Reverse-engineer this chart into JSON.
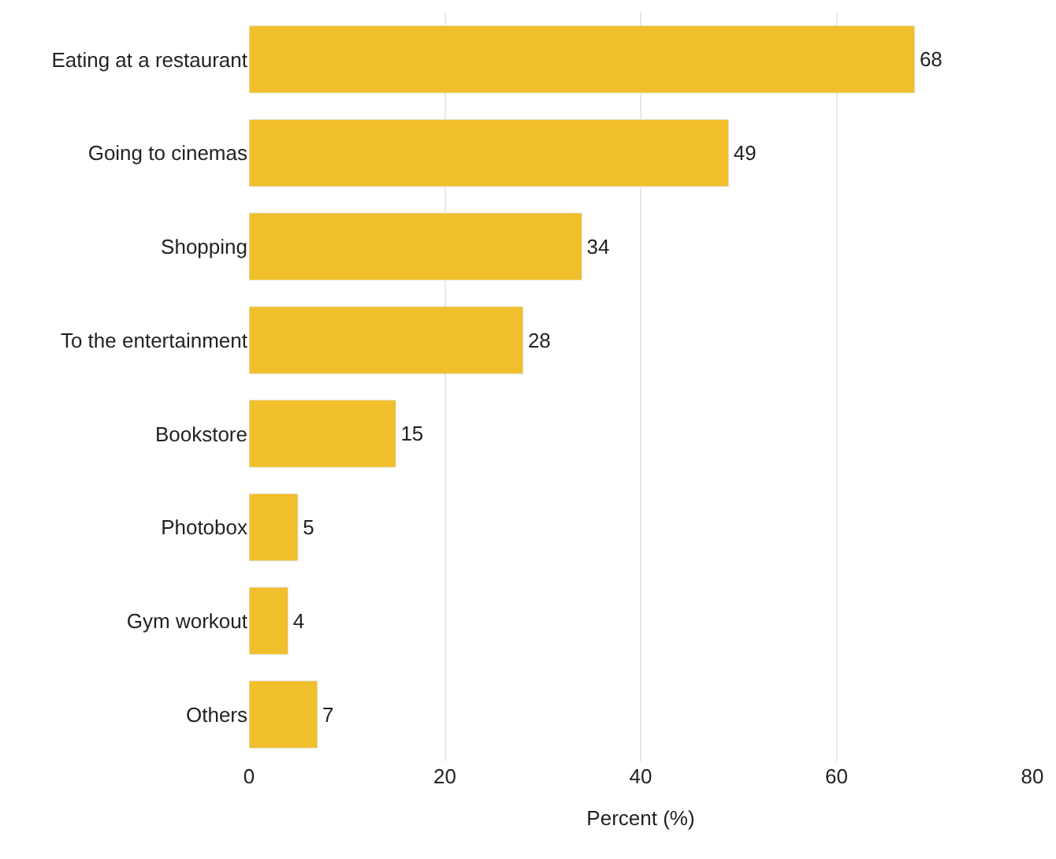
{
  "chart_data": {
    "type": "bar",
    "orientation": "horizontal",
    "categories": [
      "Eating at a restaurant",
      "Going to cinemas",
      "Shopping",
      "To the entertainment",
      "Bookstore",
      "Photobox",
      "Gym workout",
      "Others"
    ],
    "values": [
      68,
      49,
      34,
      28,
      15,
      5,
      4,
      7
    ],
    "color": "#f0bf2b",
    "data_labels": true,
    "xlabel": "Percent (%)",
    "xlim": [
      0,
      80
    ],
    "xticks": [
      0,
      20,
      40,
      60,
      80
    ],
    "grid": "x",
    "legend": false
  }
}
